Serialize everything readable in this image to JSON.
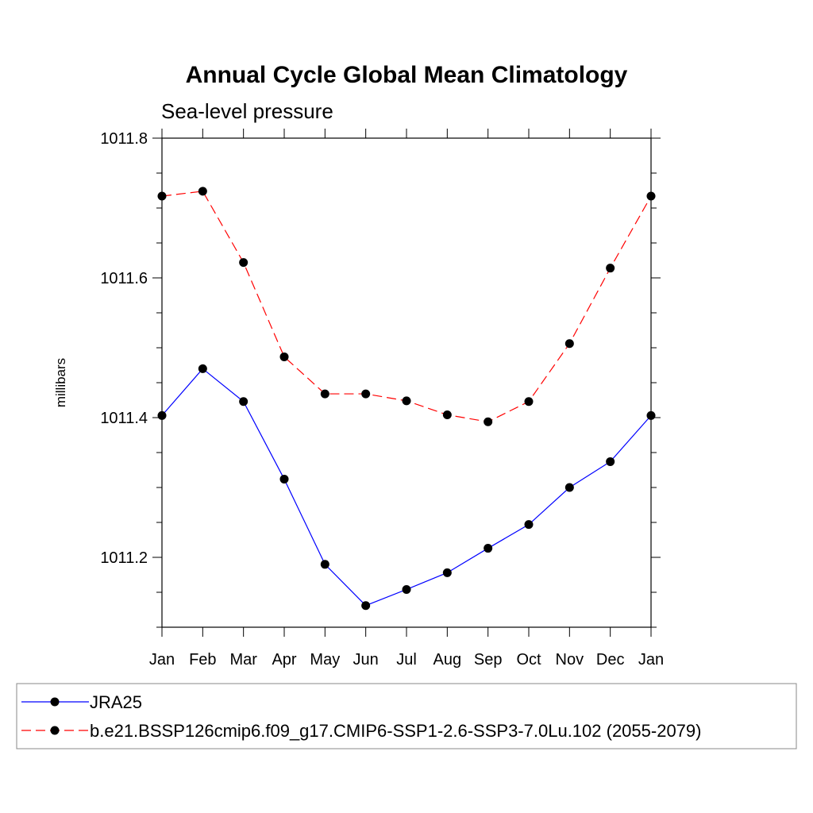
{
  "chart_data": {
    "type": "line",
    "title": "Annual Cycle Global Mean Climatology",
    "subtitle": "Sea-level pressure",
    "xlabel": "",
    "ylabel": "millibars",
    "categories": [
      "Jan",
      "Feb",
      "Mar",
      "Apr",
      "May",
      "Jun",
      "Jul",
      "Aug",
      "Sep",
      "Oct",
      "Nov",
      "Dec",
      "Jan"
    ],
    "ylim": [
      1011.1,
      1011.8
    ],
    "yticks": [
      1011.2,
      1011.4,
      1011.6,
      1011.8
    ],
    "ytick_labels": [
      "1011.2",
      "1011.4",
      "1011.6",
      "1011.8"
    ],
    "legend_position": "bottom",
    "series": [
      {
        "name": "JRA25",
        "color": "#0000ff",
        "dash": "solid",
        "values": [
          1011.403,
          1011.47,
          1011.423,
          1011.312,
          1011.19,
          1011.131,
          1011.154,
          1011.178,
          1011.213,
          1011.247,
          1011.3,
          1011.337,
          1011.403
        ]
      },
      {
        "name": "b.e21.BSSP126cmip6.f09_g17.CMIP6-SSP1-2.6-SSP3-7.0Lu.102 (2055-2079)",
        "color": "#ff0000",
        "dash": "dashed",
        "values": [
          1011.717,
          1011.724,
          1011.622,
          1011.487,
          1011.434,
          1011.434,
          1011.424,
          1011.404,
          1011.394,
          1011.423,
          1011.506,
          1011.614,
          1011.717
        ]
      }
    ]
  }
}
